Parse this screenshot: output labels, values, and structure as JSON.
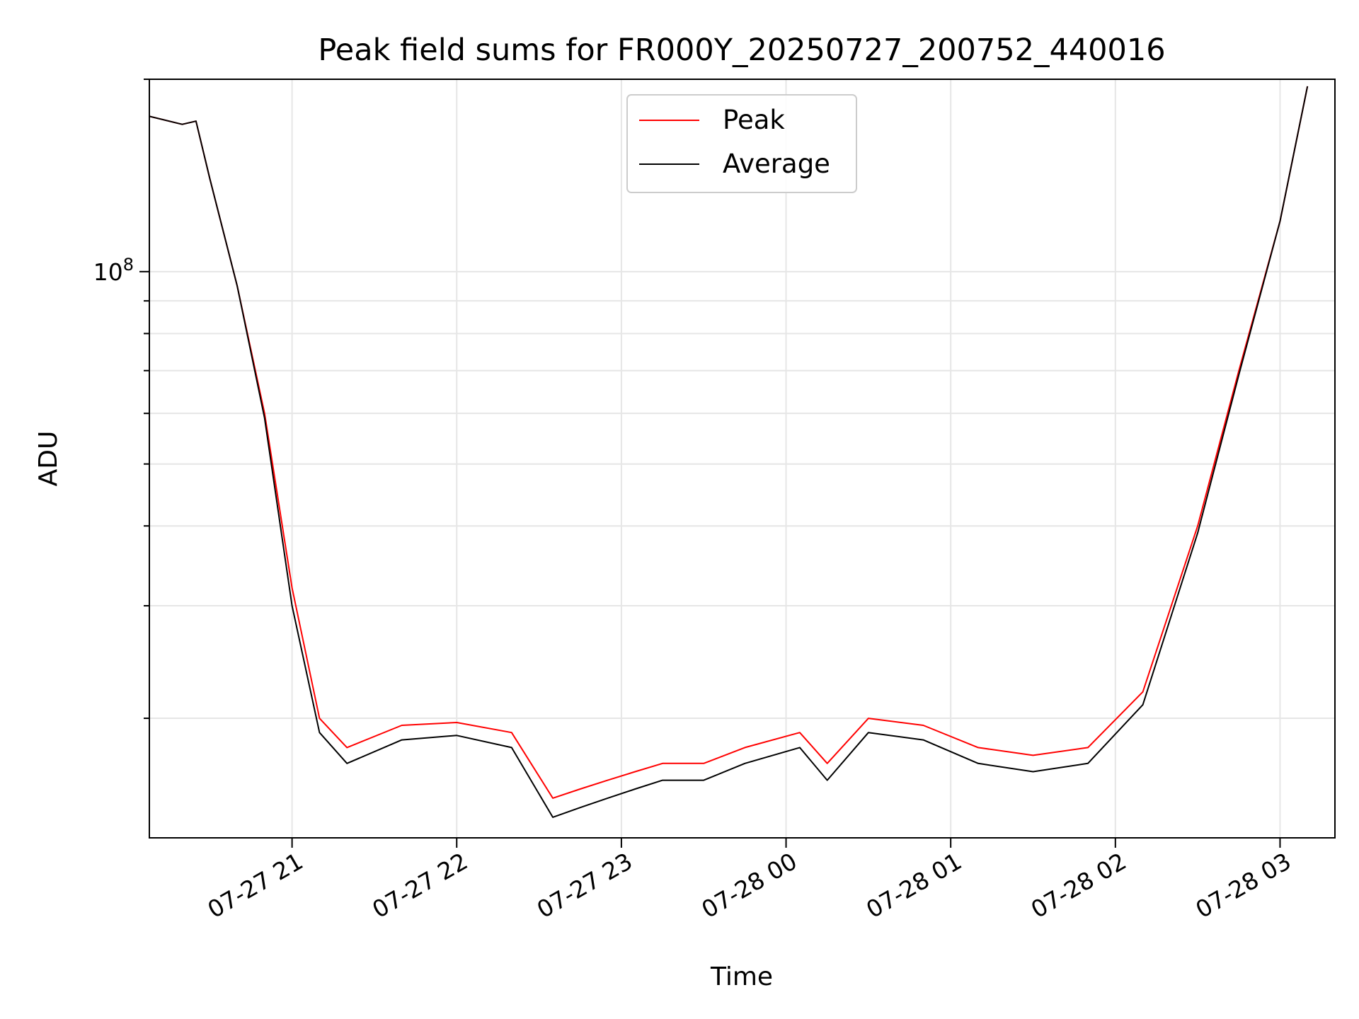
{
  "chart_data": {
    "type": "line",
    "title": "Peak field sums for FR000Y_20250727_200752_440016",
    "xlabel": "Time",
    "ylabel": "ADU",
    "yscale": "log",
    "grid": true,
    "legend_position": "upper center",
    "xlim": [
      "2025-07-27 20:08",
      "2025-07-28 03:20"
    ],
    "ylim": [
      13000000,
      200000000
    ],
    "x_tick_labels": [
      "07-27 21",
      "07-27 22",
      "07-27 23",
      "07-28 00",
      "07-28 01",
      "07-28 02",
      "07-28 03"
    ],
    "x_ticks": [
      "2025-07-27 21:00",
      "2025-07-27 22:00",
      "2025-07-27 23:00",
      "2025-07-28 00:00",
      "2025-07-28 01:00",
      "2025-07-28 02:00",
      "2025-07-28 03:00"
    ],
    "y_tick_major": {
      "value": 100000000,
      "base": "10",
      "exponent": "8"
    },
    "series": [
      {
        "name": "Peak",
        "color": "#ff0000",
        "x": [
          "2025-07-27 20:08",
          "2025-07-27 20:20",
          "2025-07-27 20:25",
          "2025-07-27 20:30",
          "2025-07-27 20:40",
          "2025-07-27 20:50",
          "2025-07-27 21:00",
          "2025-07-27 21:10",
          "2025-07-27 21:20",
          "2025-07-27 21:40",
          "2025-07-27 22:00",
          "2025-07-27 22:20",
          "2025-07-27 22:35",
          "2025-07-27 22:45",
          "2025-07-27 22:55",
          "2025-07-27 23:05",
          "2025-07-27 23:15",
          "2025-07-27 23:30",
          "2025-07-27 23:45",
          "2025-07-28 00:05",
          "2025-07-28 00:15",
          "2025-07-28 00:30",
          "2025-07-28 00:50",
          "2025-07-28 01:10",
          "2025-07-28 01:30",
          "2025-07-28 01:50",
          "2025-07-28 02:10",
          "2025-07-28 02:30",
          "2025-07-28 02:45",
          "2025-07-28 03:00",
          "2025-07-28 03:10"
        ],
        "y": [
          175000000,
          170000000,
          172000000,
          140000000,
          95000000,
          60000000,
          32000000,
          20000000,
          18000000,
          19500000,
          19700000,
          19000000,
          15000000,
          15500000,
          16000000,
          16500000,
          17000000,
          17000000,
          18000000,
          19000000,
          17000000,
          20000000,
          19500000,
          18000000,
          17500000,
          18000000,
          22000000,
          40000000,
          70000000,
          120000000,
          195000000
        ]
      },
      {
        "name": "Average",
        "color": "#000000",
        "x": [
          "2025-07-27 20:08",
          "2025-07-27 20:20",
          "2025-07-27 20:25",
          "2025-07-27 20:30",
          "2025-07-27 20:40",
          "2025-07-27 20:50",
          "2025-07-27 21:00",
          "2025-07-27 21:10",
          "2025-07-27 21:20",
          "2025-07-27 21:40",
          "2025-07-27 22:00",
          "2025-07-27 22:20",
          "2025-07-27 22:35",
          "2025-07-27 22:45",
          "2025-07-27 22:55",
          "2025-07-27 23:05",
          "2025-07-27 23:15",
          "2025-07-27 23:30",
          "2025-07-27 23:45",
          "2025-07-28 00:05",
          "2025-07-28 00:15",
          "2025-07-28 00:30",
          "2025-07-28 00:50",
          "2025-07-28 01:10",
          "2025-07-28 01:30",
          "2025-07-28 01:50",
          "2025-07-28 02:10",
          "2025-07-28 02:30",
          "2025-07-28 02:45",
          "2025-07-28 03:00",
          "2025-07-28 03:10"
        ],
        "y": [
          175000000,
          170000000,
          172000000,
          140000000,
          95000000,
          59000000,
          30000000,
          19000000,
          17000000,
          18500000,
          18800000,
          18000000,
          14000000,
          14500000,
          15000000,
          15500000,
          16000000,
          16000000,
          17000000,
          18000000,
          16000000,
          19000000,
          18500000,
          17000000,
          16500000,
          17000000,
          21000000,
          39000000,
          69000000,
          120000000,
          195000000
        ]
      }
    ]
  },
  "colors": {
    "peak": "#ff0000",
    "average": "#000000",
    "grid": "#e6e6e6",
    "axes": "#000000"
  }
}
